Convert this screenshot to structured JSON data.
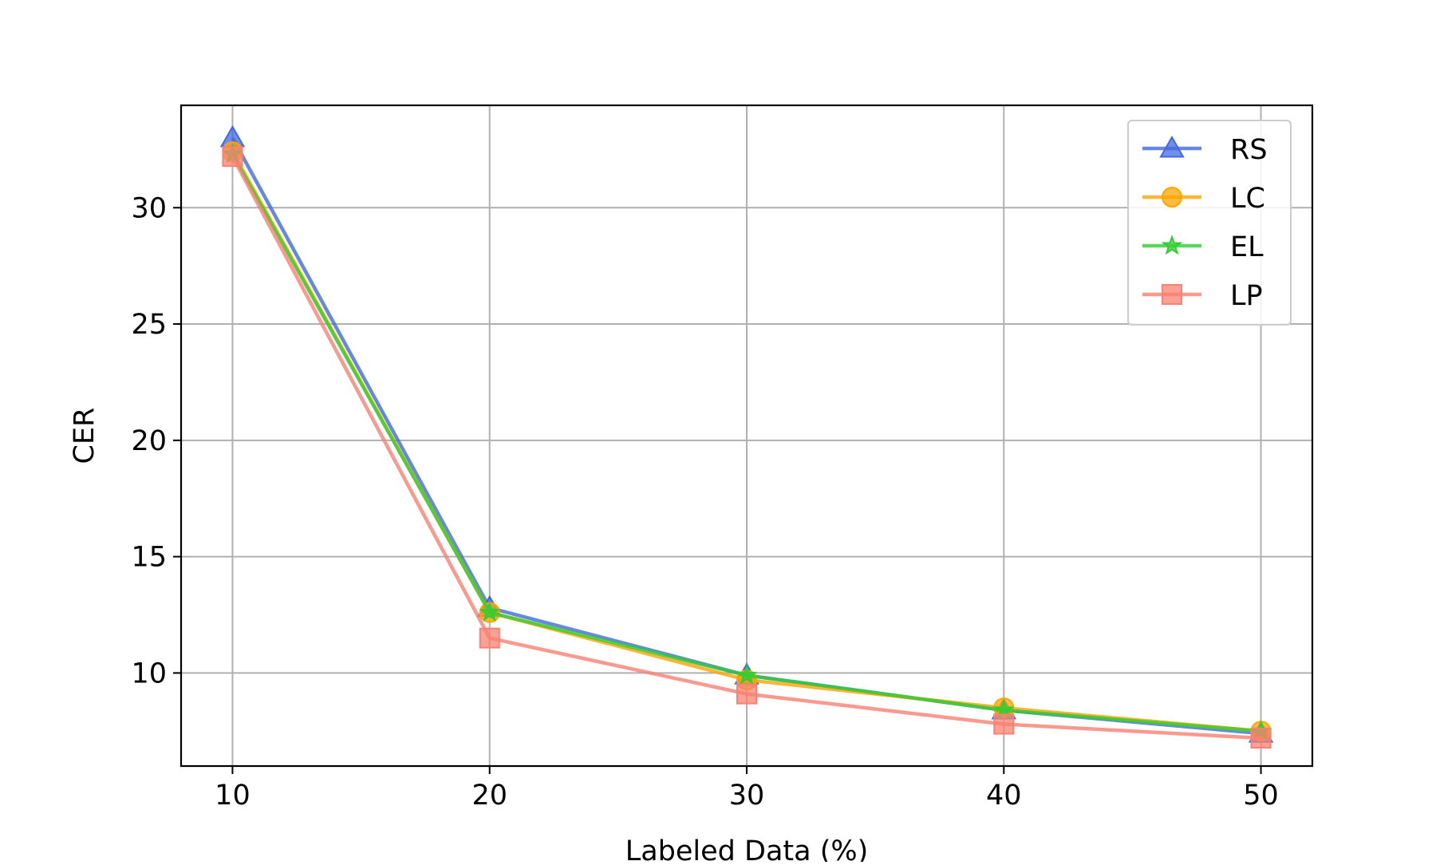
{
  "chart_data": {
    "type": "line",
    "title": "",
    "xlabel": "Labeled Data (%)",
    "ylabel": "CER",
    "x": [
      10,
      20,
      30,
      40,
      50
    ],
    "x_ticks": [
      "10",
      "20",
      "30",
      "40",
      "50"
    ],
    "y_ticks": [
      "10",
      "15",
      "20",
      "25",
      "30"
    ],
    "xlim": [
      8,
      52
    ],
    "ylim": [
      6.0,
      34.4
    ],
    "grid": true,
    "legend_position": "top-right",
    "series": [
      {
        "name": "RS",
        "values": [
          33.0,
          12.8,
          9.9,
          8.4,
          7.4
        ],
        "color": "#4169e1",
        "marker": "triangle"
      },
      {
        "name": "LC",
        "values": [
          32.4,
          12.6,
          9.7,
          8.5,
          7.5
        ],
        "color": "#ffa500",
        "marker": "circle"
      },
      {
        "name": "EL",
        "values": [
          32.3,
          12.6,
          9.9,
          8.4,
          7.5
        ],
        "color": "#32cd32",
        "marker": "star"
      },
      {
        "name": "LP",
        "values": [
          32.2,
          11.5,
          9.1,
          7.8,
          7.2
        ],
        "color": "#fa8072",
        "marker": "square"
      }
    ]
  }
}
